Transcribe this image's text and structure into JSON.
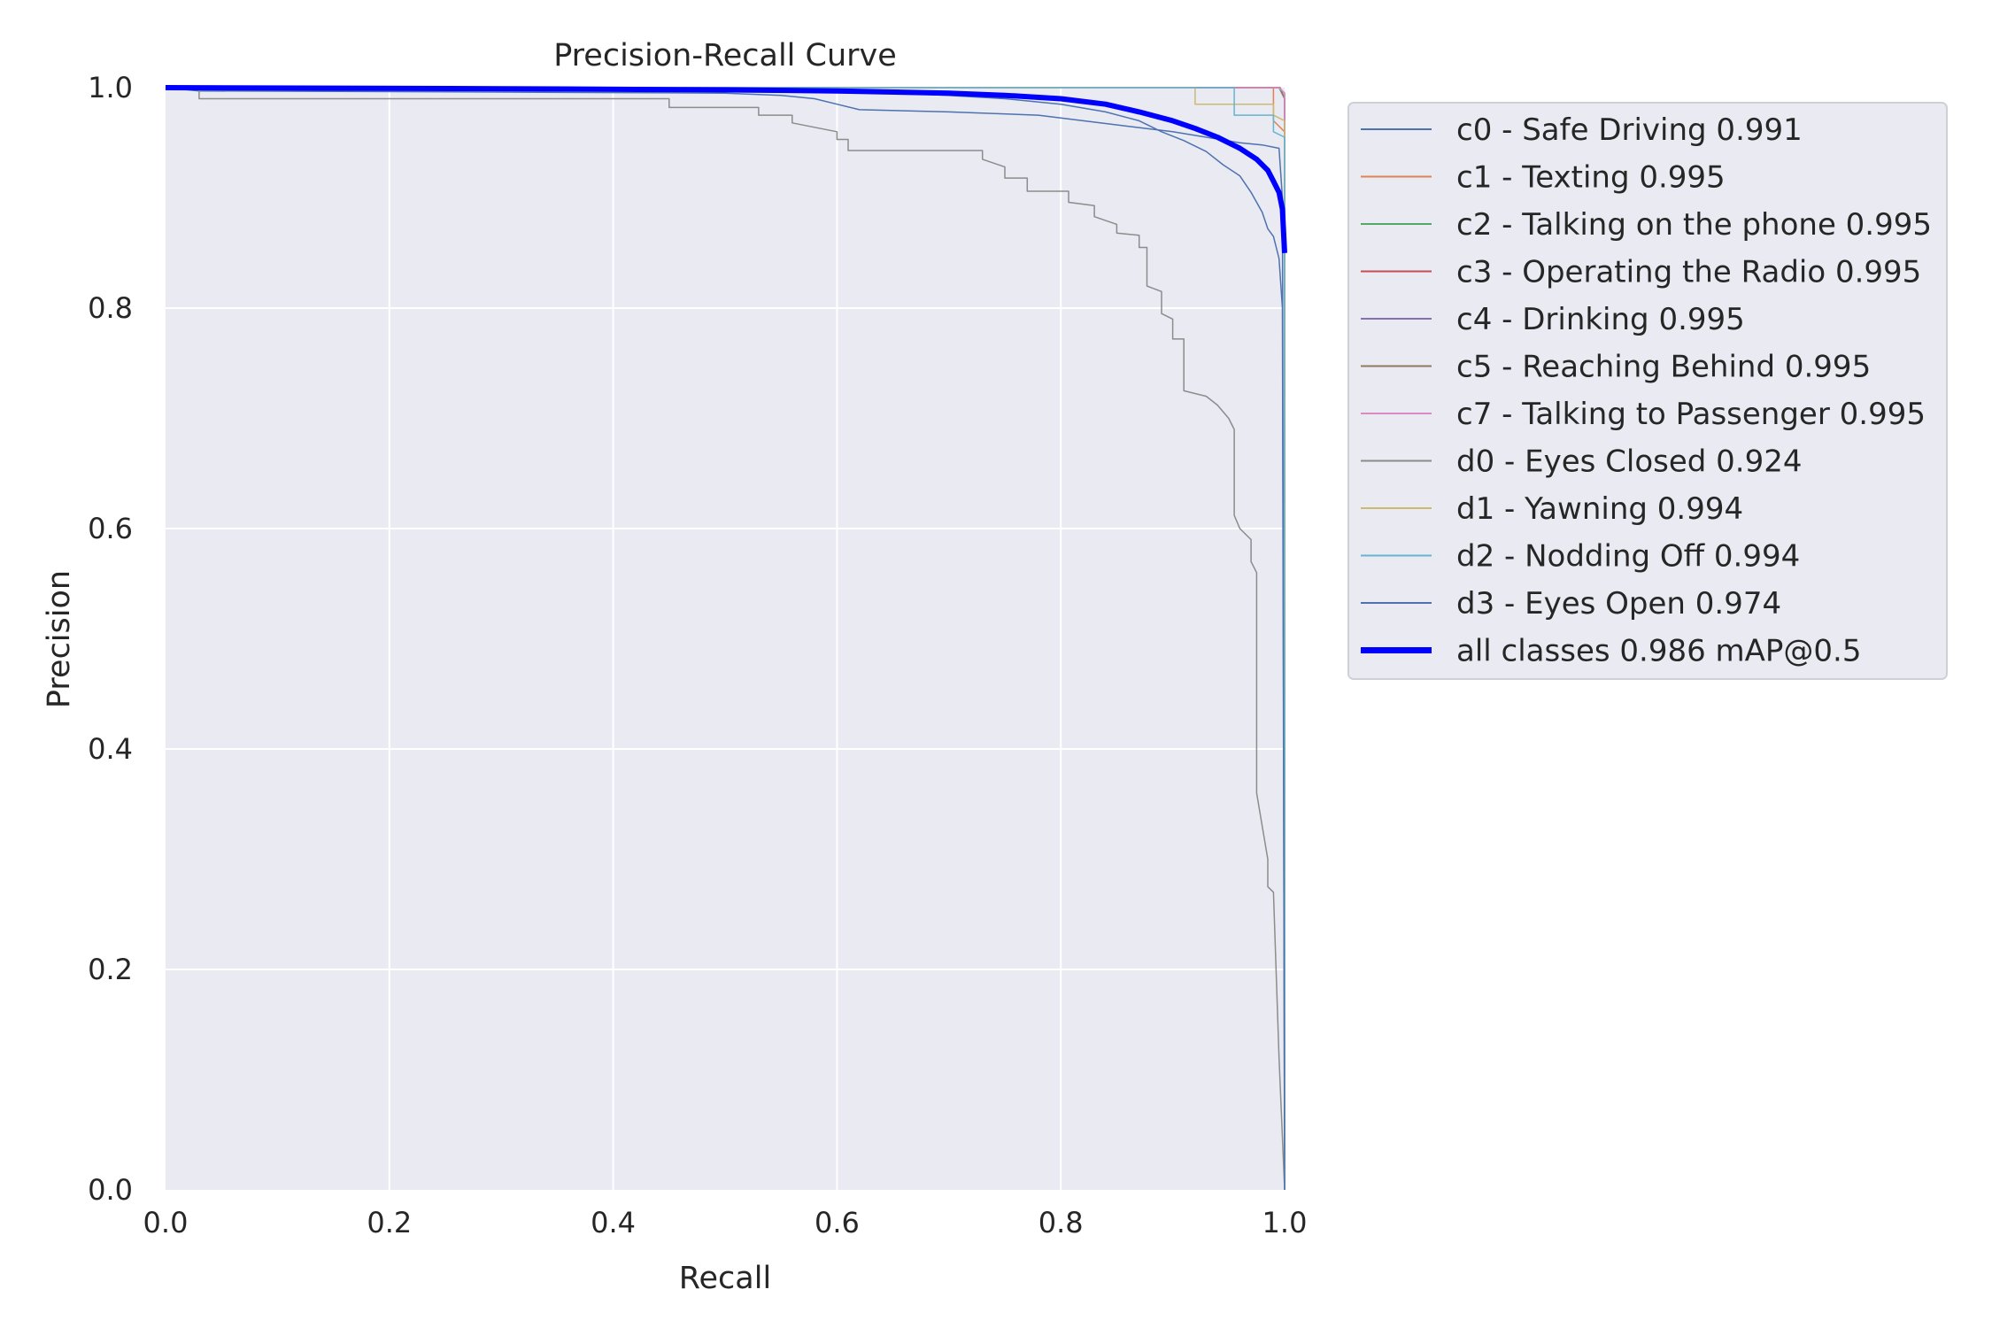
{
  "chart_data": {
    "type": "line",
    "title": "Precision-Recall Curve",
    "xlabel": "Recall",
    "ylabel": "Precision",
    "xlim": [
      0,
      1
    ],
    "ylim": [
      0,
      1
    ],
    "xticks": [
      "0.0",
      "0.2",
      "0.4",
      "0.6",
      "0.8",
      "1.0"
    ],
    "yticks": [
      "0.0",
      "0.2",
      "0.4",
      "0.6",
      "0.8",
      "1.0"
    ],
    "grid": true,
    "legend_position": "outside-right",
    "series": [
      {
        "name": "c0 - Safe Driving 0.991",
        "color": "#4c72b0",
        "width": 1.5,
        "points": [
          [
            0,
            1.0
          ],
          [
            0.03,
            0.997
          ],
          [
            0.3,
            0.996
          ],
          [
            0.5,
            0.995
          ],
          [
            0.55,
            0.993
          ],
          [
            0.58,
            0.99
          ],
          [
            0.6,
            0.985
          ],
          [
            0.62,
            0.98
          ],
          [
            0.7,
            0.978
          ],
          [
            0.78,
            0.975
          ],
          [
            0.82,
            0.97
          ],
          [
            0.86,
            0.965
          ],
          [
            0.9,
            0.96
          ],
          [
            0.93,
            0.955
          ],
          [
            0.96,
            0.95
          ],
          [
            0.98,
            0.948
          ],
          [
            0.995,
            0.945
          ],
          [
            0.998,
            0.9
          ],
          [
            1.0,
            0.0
          ]
        ]
      },
      {
        "name": "c1 - Texting 0.995",
        "color": "#dd8452",
        "width": 1.5,
        "points": [
          [
            0,
            1.0
          ],
          [
            0.99,
            1.0
          ],
          [
            0.99,
            0.97
          ],
          [
            1.0,
            0.96
          ],
          [
            1.0,
            0.0
          ]
        ]
      },
      {
        "name": "c2 - Talking on the phone 0.995",
        "color": "#55a868",
        "width": 1.5,
        "points": [
          [
            0,
            1.0
          ],
          [
            0.995,
            1.0
          ],
          [
            1.0,
            0.99
          ],
          [
            1.0,
            0.0
          ]
        ]
      },
      {
        "name": "c3 - Operating the Radio 0.995",
        "color": "#c44e52",
        "width": 1.5,
        "points": [
          [
            0,
            1.0
          ],
          [
            0.996,
            1.0
          ],
          [
            1.0,
            0.99
          ],
          [
            1.0,
            0.0
          ]
        ]
      },
      {
        "name": "c4 - Drinking 0.995",
        "color": "#8172b3",
        "width": 1.5,
        "points": [
          [
            0,
            1.0
          ],
          [
            0.995,
            1.0
          ],
          [
            1.0,
            0.995
          ],
          [
            1.0,
            0.0
          ]
        ]
      },
      {
        "name": "c5 - Reaching Behind 0.995",
        "color": "#937860",
        "width": 1.5,
        "points": [
          [
            0,
            1.0
          ],
          [
            0.996,
            1.0
          ],
          [
            1.0,
            0.99
          ],
          [
            1.0,
            0.0
          ]
        ]
      },
      {
        "name": "c7 - Talking to Passenger 0.995",
        "color": "#da8bc3",
        "width": 1.5,
        "points": [
          [
            0,
            1.0
          ],
          [
            0.995,
            1.0
          ],
          [
            1.0,
            0.995
          ],
          [
            1.0,
            0.0
          ]
        ]
      },
      {
        "name": "d0 - Eyes Closed 0.924",
        "color": "#8c8c8c",
        "width": 1.5,
        "points": [
          [
            0,
            1.0
          ],
          [
            0.03,
            1.0
          ],
          [
            0.03,
            0.99
          ],
          [
            0.45,
            0.99
          ],
          [
            0.45,
            0.982
          ],
          [
            0.53,
            0.982
          ],
          [
            0.53,
            0.975
          ],
          [
            0.56,
            0.975
          ],
          [
            0.56,
            0.968
          ],
          [
            0.6,
            0.96
          ],
          [
            0.6,
            0.953
          ],
          [
            0.61,
            0.953
          ],
          [
            0.61,
            0.943
          ],
          [
            0.73,
            0.943
          ],
          [
            0.73,
            0.935
          ],
          [
            0.75,
            0.928
          ],
          [
            0.75,
            0.918
          ],
          [
            0.77,
            0.918
          ],
          [
            0.77,
            0.906
          ],
          [
            0.807,
            0.906
          ],
          [
            0.807,
            0.896
          ],
          [
            0.83,
            0.893
          ],
          [
            0.83,
            0.883
          ],
          [
            0.85,
            0.876
          ],
          [
            0.85,
            0.868
          ],
          [
            0.87,
            0.866
          ],
          [
            0.87,
            0.855
          ],
          [
            0.877,
            0.855
          ],
          [
            0.877,
            0.82
          ],
          [
            0.89,
            0.815
          ],
          [
            0.89,
            0.795
          ],
          [
            0.9,
            0.79
          ],
          [
            0.9,
            0.772
          ],
          [
            0.91,
            0.772
          ],
          [
            0.91,
            0.725
          ],
          [
            0.93,
            0.72
          ],
          [
            0.94,
            0.712
          ],
          [
            0.95,
            0.7
          ],
          [
            0.955,
            0.69
          ],
          [
            0.955,
            0.612
          ],
          [
            0.96,
            0.6
          ],
          [
            0.97,
            0.59
          ],
          [
            0.97,
            0.57
          ],
          [
            0.975,
            0.56
          ],
          [
            0.975,
            0.36
          ],
          [
            0.98,
            0.33
          ],
          [
            0.985,
            0.3
          ],
          [
            0.985,
            0.275
          ],
          [
            0.99,
            0.27
          ],
          [
            0.995,
            0.12
          ],
          [
            1.0,
            0.0
          ]
        ]
      },
      {
        "name": "d1 - Yawning 0.994",
        "color": "#ccb974",
        "width": 1.5,
        "points": [
          [
            0,
            1.0
          ],
          [
            0.92,
            1.0
          ],
          [
            0.92,
            0.985
          ],
          [
            0.99,
            0.985
          ],
          [
            0.99,
            0.975
          ],
          [
            1.0,
            0.97
          ],
          [
            1.0,
            0.0
          ]
        ]
      },
      {
        "name": "d2 - Nodding Off 0.994",
        "color": "#64b5cd",
        "width": 1.5,
        "points": [
          [
            0,
            1.0
          ],
          [
            0.955,
            1.0
          ],
          [
            0.955,
            0.975
          ],
          [
            0.99,
            0.975
          ],
          [
            0.99,
            0.96
          ],
          [
            1.0,
            0.955
          ],
          [
            1.0,
            0.0
          ]
        ]
      },
      {
        "name": "d3 - Eyes Open 0.974",
        "color": "#4c72b0",
        "width": 1.5,
        "points": [
          [
            0,
            1.0
          ],
          [
            0.6,
            0.997
          ],
          [
            0.65,
            0.995
          ],
          [
            0.7,
            0.993
          ],
          [
            0.75,
            0.99
          ],
          [
            0.8,
            0.985
          ],
          [
            0.84,
            0.978
          ],
          [
            0.87,
            0.97
          ],
          [
            0.89,
            0.96
          ],
          [
            0.91,
            0.952
          ],
          [
            0.93,
            0.942
          ],
          [
            0.945,
            0.93
          ],
          [
            0.96,
            0.92
          ],
          [
            0.97,
            0.905
          ],
          [
            0.98,
            0.887
          ],
          [
            0.985,
            0.872
          ],
          [
            0.99,
            0.865
          ],
          [
            0.995,
            0.845
          ],
          [
            0.998,
            0.8
          ],
          [
            1.0,
            0.0
          ]
        ]
      },
      {
        "name": "all classes 0.986 mAP@0.5",
        "color": "#0000ff",
        "width": 6,
        "points": [
          [
            0,
            1.0
          ],
          [
            0.3,
            0.999
          ],
          [
            0.5,
            0.998
          ],
          [
            0.6,
            0.997
          ],
          [
            0.7,
            0.995
          ],
          [
            0.75,
            0.993
          ],
          [
            0.8,
            0.99
          ],
          [
            0.84,
            0.985
          ],
          [
            0.87,
            0.978
          ],
          [
            0.9,
            0.97
          ],
          [
            0.92,
            0.963
          ],
          [
            0.94,
            0.955
          ],
          [
            0.96,
            0.945
          ],
          [
            0.975,
            0.935
          ],
          [
            0.985,
            0.925
          ],
          [
            0.99,
            0.915
          ],
          [
            0.995,
            0.905
          ],
          [
            0.998,
            0.89
          ],
          [
            1.0,
            0.85
          ]
        ]
      }
    ]
  }
}
